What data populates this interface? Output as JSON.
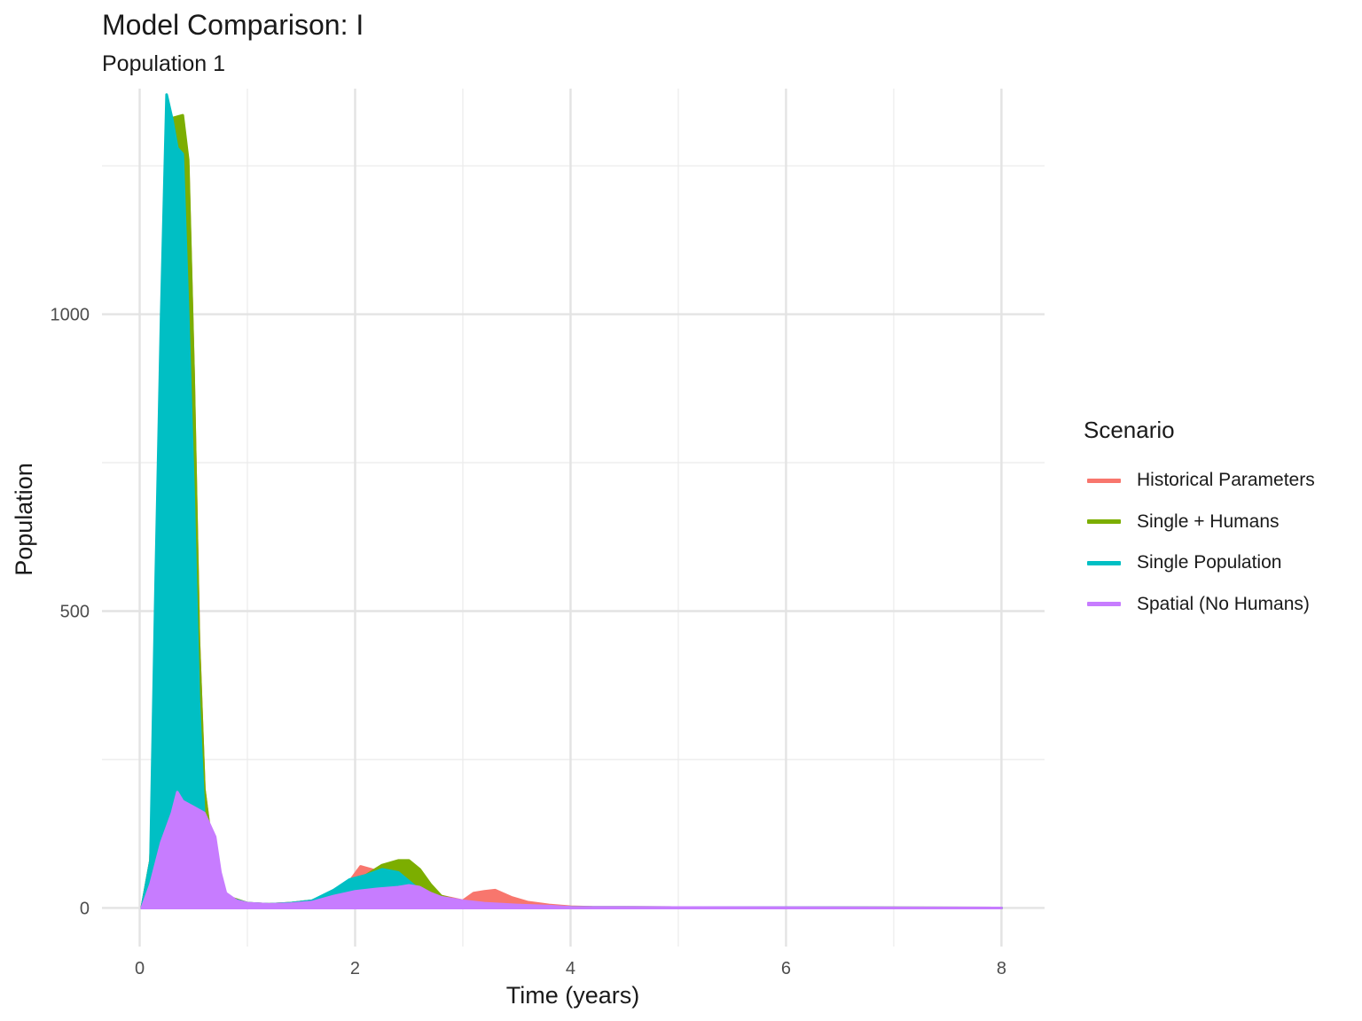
{
  "chart_data": {
    "type": "area",
    "title": "Model Comparison: I",
    "subtitle": "Population 1",
    "xlabel": "Time (years)",
    "ylabel": "Population",
    "xlim": [
      -0.35,
      8.4
    ],
    "ylim": [
      -65,
      1380
    ],
    "x_ticks": [
      0,
      2,
      4,
      6,
      8
    ],
    "y_ticks": [
      0,
      500,
      1000
    ],
    "grid": true,
    "legend_title": "Scenario",
    "legend_position": "right",
    "series": [
      {
        "name": "Historical Parameters",
        "color": "#F8766D",
        "points": [
          [
            0.02,
            0
          ],
          [
            0.1,
            80
          ],
          [
            0.2,
            560
          ],
          [
            0.25,
            1330
          ],
          [
            0.3,
            1310
          ],
          [
            0.4,
            1300
          ],
          [
            0.45,
            1250
          ],
          [
            0.5,
            900
          ],
          [
            0.55,
            450
          ],
          [
            0.6,
            200
          ],
          [
            0.7,
            60
          ],
          [
            0.8,
            20
          ],
          [
            1.0,
            8
          ],
          [
            1.2,
            6
          ],
          [
            1.4,
            8
          ],
          [
            1.6,
            12
          ],
          [
            1.8,
            25
          ],
          [
            1.95,
            45
          ],
          [
            2.05,
            70
          ],
          [
            2.15,
            65
          ],
          [
            2.3,
            55
          ],
          [
            2.45,
            50
          ],
          [
            2.6,
            40
          ],
          [
            2.8,
            20
          ],
          [
            3.0,
            12
          ],
          [
            3.1,
            25
          ],
          [
            3.2,
            28
          ],
          [
            3.3,
            30
          ],
          [
            3.45,
            18
          ],
          [
            3.6,
            10
          ],
          [
            3.8,
            5
          ],
          [
            4.0,
            2
          ],
          [
            4.2,
            1
          ],
          [
            8.0,
            0
          ]
        ]
      },
      {
        "name": "Single + Humans",
        "color": "#7CAE00",
        "points": [
          [
            0.02,
            0
          ],
          [
            0.1,
            80
          ],
          [
            0.2,
            560
          ],
          [
            0.25,
            1320
          ],
          [
            0.3,
            1330
          ],
          [
            0.4,
            1335
          ],
          [
            0.45,
            1260
          ],
          [
            0.5,
            900
          ],
          [
            0.55,
            450
          ],
          [
            0.6,
            200
          ],
          [
            0.7,
            60
          ],
          [
            0.8,
            20
          ],
          [
            1.0,
            8
          ],
          [
            1.2,
            6
          ],
          [
            1.4,
            8
          ],
          [
            1.6,
            12
          ],
          [
            1.8,
            28
          ],
          [
            1.95,
            45
          ],
          [
            2.1,
            55
          ],
          [
            2.25,
            72
          ],
          [
            2.4,
            80
          ],
          [
            2.5,
            80
          ],
          [
            2.6,
            65
          ],
          [
            2.7,
            40
          ],
          [
            2.8,
            20
          ],
          [
            3.0,
            10
          ],
          [
            3.3,
            5
          ],
          [
            3.6,
            3
          ],
          [
            4.0,
            1
          ],
          [
            8.0,
            0
          ]
        ]
      },
      {
        "name": "Single Population",
        "color": "#00BFC4",
        "points": [
          [
            0.02,
            0
          ],
          [
            0.1,
            80
          ],
          [
            0.15,
            560
          ],
          [
            0.2,
            1000
          ],
          [
            0.25,
            1370
          ],
          [
            0.3,
            1330
          ],
          [
            0.35,
            1280
          ],
          [
            0.4,
            1270
          ],
          [
            0.45,
            1000
          ],
          [
            0.5,
            700
          ],
          [
            0.55,
            350
          ],
          [
            0.6,
            150
          ],
          [
            0.7,
            50
          ],
          [
            0.8,
            18
          ],
          [
            1.0,
            8
          ],
          [
            1.2,
            6
          ],
          [
            1.4,
            8
          ],
          [
            1.6,
            12
          ],
          [
            1.8,
            30
          ],
          [
            1.95,
            48
          ],
          [
            2.1,
            55
          ],
          [
            2.25,
            65
          ],
          [
            2.4,
            60
          ],
          [
            2.5,
            45
          ],
          [
            2.6,
            30
          ],
          [
            2.75,
            18
          ],
          [
            3.0,
            10
          ],
          [
            3.3,
            5
          ],
          [
            3.6,
            3
          ],
          [
            4.0,
            1
          ],
          [
            8.0,
            0
          ]
        ]
      },
      {
        "name": "Spatial (No Humans)",
        "color": "#C77CFF",
        "points": [
          [
            0.02,
            0
          ],
          [
            0.1,
            40
          ],
          [
            0.2,
            110
          ],
          [
            0.3,
            160
          ],
          [
            0.35,
            195
          ],
          [
            0.4,
            180
          ],
          [
            0.5,
            170
          ],
          [
            0.6,
            160
          ],
          [
            0.7,
            120
          ],
          [
            0.75,
            60
          ],
          [
            0.8,
            25
          ],
          [
            0.9,
            12
          ],
          [
            1.0,
            8
          ],
          [
            1.2,
            6
          ],
          [
            1.4,
            7
          ],
          [
            1.6,
            10
          ],
          [
            1.8,
            20
          ],
          [
            2.0,
            28
          ],
          [
            2.2,
            32
          ],
          [
            2.4,
            35
          ],
          [
            2.5,
            38
          ],
          [
            2.6,
            35
          ],
          [
            2.7,
            25
          ],
          [
            2.8,
            18
          ],
          [
            3.0,
            12
          ],
          [
            3.2,
            8
          ],
          [
            3.5,
            5
          ],
          [
            3.8,
            3
          ],
          [
            4.0,
            1
          ],
          [
            8.0,
            0
          ]
        ]
      }
    ]
  }
}
